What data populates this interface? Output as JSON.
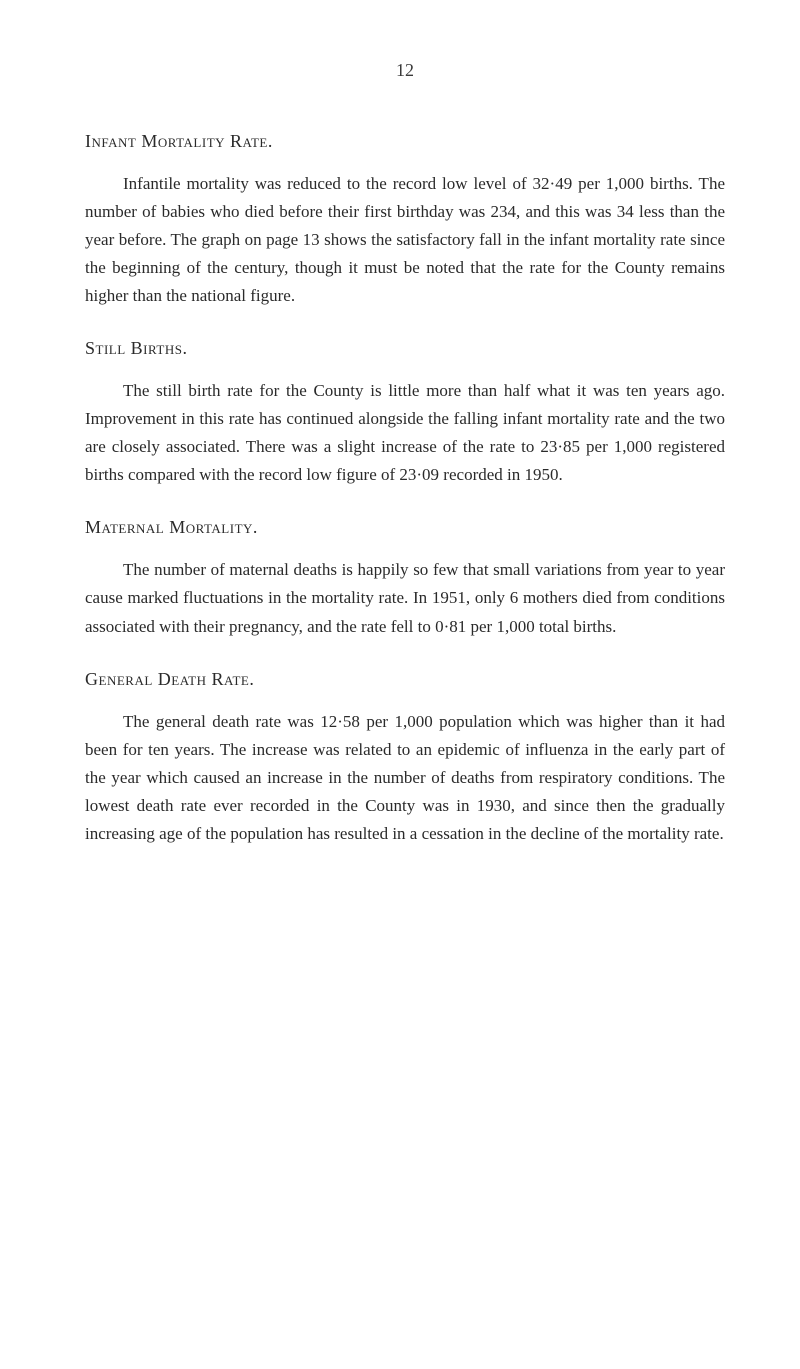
{
  "page_number": "12",
  "sections": [
    {
      "heading": "Infant Mortality Rate.",
      "paragraph": "Infantile mortality was reduced to the record low level of 32·49 per 1,000 births. The number of babies who died before their first birthday was 234, and this was 34 less than the year before. The graph on page 13 shows the satisfactory fall in the infant mortality rate since the beginning of the century, though it must be noted that the rate for the County remains higher than the national figure."
    },
    {
      "heading": "Still Births.",
      "paragraph": "The still birth rate for the County is little more than half what it was ten years ago. Improvement in this rate has continued alongside the falling infant mortality rate and the two are closely associated. There was a slight increase of the rate to 23·85 per 1,000 registered births compared with the record low figure of 23·09 recorded in 1950."
    },
    {
      "heading": "Maternal Mortality.",
      "paragraph": "The number of maternal deaths is happily so few that small variations from year to year cause marked fluctuations in the mortality rate. In 1951, only 6 mothers died from conditions associated with their pregnancy, and the rate fell to 0·81 per 1,000 total births."
    },
    {
      "heading": "General Death Rate.",
      "paragraph": "The general death rate was 12·58 per 1,000 population which was higher than it had been for ten years. The increase was related to an epidemic of influenza in the early part of the year which caused an increase in the number of deaths from respiratory conditions. The lowest death rate ever recorded in the County was in 1930, and since then the gradually increasing age of the population has resulted in a cessation in the decline of the mortality rate."
    }
  ]
}
